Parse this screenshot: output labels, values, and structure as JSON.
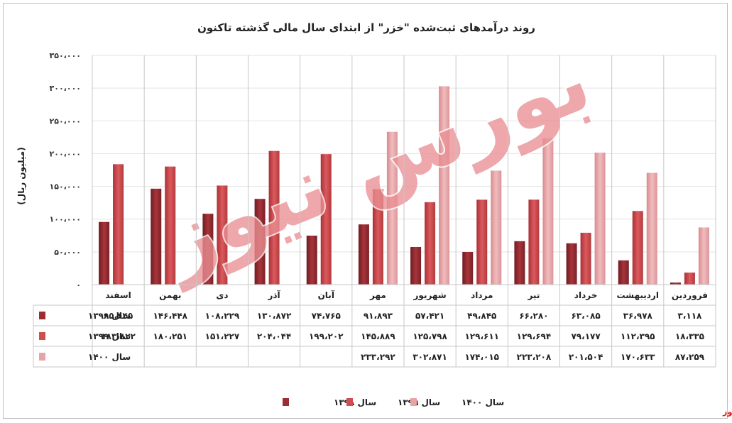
{
  "chart_data": {
    "type": "bar",
    "title": "روند درآمدهای ثبت‌شده \"خزر\" از ابتدای سال مالی گذشته تاکنون",
    "ylabel": "(میلیون ریال)",
    "ylim": [
      0,
      350000
    ],
    "yticks": [
      0,
      50000,
      100000,
      150000,
      200000,
      250000,
      300000,
      350000
    ],
    "ytick_labels": [
      "۰",
      "۵۰،۰۰۰",
      "۱۰۰،۰۰۰",
      "۱۵۰،۰۰۰",
      "۲۰۰،۰۰۰",
      "۲۵۰،۰۰۰",
      "۳۰۰،۰۰۰",
      "۳۵۰،۰۰۰"
    ],
    "categories": [
      "فروردین",
      "اردیبهشت",
      "خرداد",
      "تیر",
      "مرداد",
      "شهریور",
      "مهر",
      "آبان",
      "آذر",
      "دی",
      "بهمن",
      "اسفند"
    ],
    "series": [
      {
        "name": "سال ۱۳۹۸",
        "color": "#9c2d33",
        "values": [
          3118,
          36978,
          63085,
          66280,
          49845,
          57421,
          91893,
          74765,
          130872,
          108229,
          146448,
          95645
        ],
        "labels": [
          "۳،۱۱۸",
          "۳۶،۹۷۸",
          "۶۳،۰۸۵",
          "۶۶،۲۸۰",
          "۴۹،۸۴۵",
          "۵۷،۴۲۱",
          "۹۱،۸۹۳",
          "۷۴،۷۶۵",
          "۱۳۰،۸۷۲",
          "۱۰۸،۲۲۹",
          "۱۴۶،۴۴۸",
          "۹۵،۶۴۵"
        ]
      },
      {
        "name": "سال ۱۳۹۹",
        "color": "#cf4c4f",
        "values": [
          18335,
          112395,
          79177,
          129694,
          129611,
          125798,
          145889,
          199202,
          204044,
          151227,
          180251,
          183822
        ],
        "labels": [
          "۱۸،۳۳۵",
          "۱۱۲،۳۹۵",
          "۷۹،۱۷۷",
          "۱۲۹،۶۹۴",
          "۱۲۹،۶۱۱",
          "۱۲۵،۷۹۸",
          "۱۴۵،۸۸۹",
          "۱۹۹،۲۰۲",
          "۲۰۴،۰۴۴",
          "۱۵۱،۲۲۷",
          "۱۸۰،۲۵۱",
          "۱۸۳،۸۲۲"
        ]
      },
      {
        "name": "سال ۱۴۰۰",
        "color": "#e7a4a7",
        "values": [
          87259,
          170633,
          201504,
          223208,
          174015,
          302871,
          233292,
          null,
          null,
          null,
          null,
          null
        ],
        "labels": [
          "۸۷،۲۵۹",
          "۱۷۰،۶۳۳",
          "۲۰۱،۵۰۴",
          "۲۲۳،۲۰۸",
          "۱۷۴،۰۱۵",
          "۳۰۲،۸۷۱",
          "۲۳۳،۲۹۲",
          "",
          "",
          "",
          "",
          ""
        ]
      }
    ],
    "grid": true,
    "legend_position": "bottom",
    "watermark": "بورس نیوز",
    "source": "بورس نیوز"
  }
}
